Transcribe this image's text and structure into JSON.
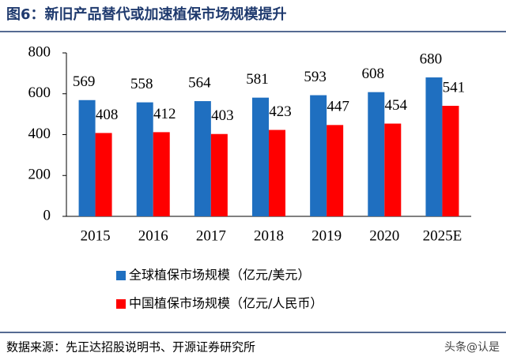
{
  "chart_data": {
    "type": "bar",
    "title": "图6：新旧产品替代或加速植保市场规模提升",
    "categories": [
      "2015",
      "2016",
      "2017",
      "2018",
      "2019",
      "2020",
      "2025E"
    ],
    "series": [
      {
        "name": "全球植保市场规模（亿元/美元）",
        "color": "#1f6fc0",
        "values": [
          569,
          558,
          564,
          581,
          593,
          608,
          680
        ]
      },
      {
        "name": "中国植保市场规模（亿元/人民币）",
        "color": "#ff0000",
        "values": [
          408,
          412,
          403,
          423,
          447,
          454,
          541
        ]
      }
    ],
    "ylim": [
      0,
      800
    ],
    "yticks": [
      0,
      200,
      400,
      600,
      800
    ],
    "source": "数据来源：先正达招股说明书、开源证券研究所",
    "watermark": "头条@认是"
  }
}
